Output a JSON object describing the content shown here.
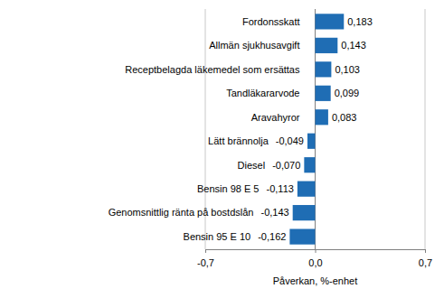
{
  "chart_data": {
    "type": "bar",
    "orientation": "horizontal",
    "x_label": "Påverkan, %-enhet",
    "categories": [
      "Fordonsskatt",
      "Allmän sjukhusavgift",
      "Receptbelagda läkemedel som ersättas",
      "Tandläkararvode",
      "Aravahyror",
      "Lätt brännolja",
      "Diesel",
      "Bensin 98 E 5",
      "Genomsnittlig ränta på bostdslån",
      "Bensin 95 E 10"
    ],
    "values": [
      0.183,
      0.143,
      0.103,
      0.099,
      0.083,
      -0.049,
      -0.07,
      -0.113,
      -0.143,
      -0.162
    ],
    "value_labels": [
      "0,183",
      "0,143",
      "0,103",
      "0,099",
      "0,083",
      "-0,049",
      "-0,070",
      "-0,113",
      "-0,143",
      "-0,162"
    ],
    "color": "#1f6db4",
    "xlim": [
      -0.7,
      0.7
    ],
    "xticks": [
      {
        "value": -0.7,
        "label": "-0,7"
      },
      {
        "value": 0,
        "label": "0,0"
      },
      {
        "value": 0.7,
        "label": "0,7"
      }
    ],
    "grid": true,
    "data_labels": true
  }
}
